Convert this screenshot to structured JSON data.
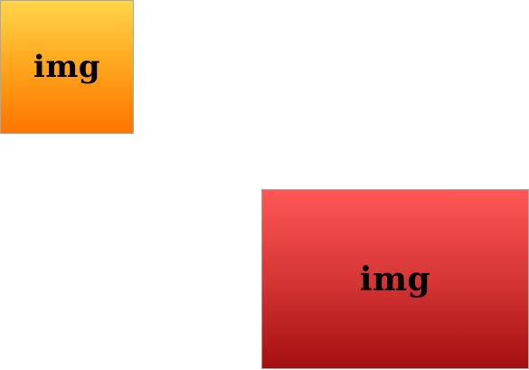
{
  "images": {
    "small": {
      "label": "img",
      "gradient_top": "#ffd54a",
      "gradient_bottom": "#ff7400"
    },
    "large": {
      "label": "img",
      "gradient_top": "#ff5757",
      "gradient_bottom": "#a30f0f"
    }
  }
}
